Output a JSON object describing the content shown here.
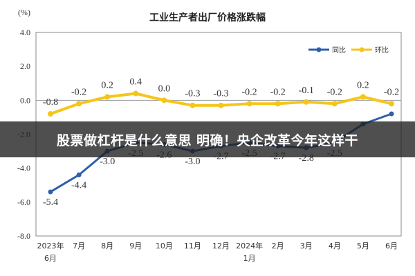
{
  "chart_data": {
    "type": "line",
    "title": "工业生产者出厂价格涨跌幅",
    "unit": "(%)",
    "categories": [
      [
        "2023年",
        "6月"
      ],
      [
        "7月"
      ],
      [
        "8月"
      ],
      [
        "9月"
      ],
      [
        "10月"
      ],
      [
        "11月"
      ],
      [
        "12月"
      ],
      [
        "2024年",
        "1月"
      ],
      [
        "2月"
      ],
      [
        "3月"
      ],
      [
        "4月"
      ],
      [
        "5月"
      ],
      [
        "6月"
      ]
    ],
    "ylim": [
      -8.0,
      4.0
    ],
    "yticks": [
      "4.0",
      "2.0",
      "0.0",
      "-2.0",
      "-4.0",
      "-6.0",
      "-8.0"
    ],
    "ytick_values": [
      4,
      2,
      0,
      -2,
      -4,
      -6,
      -8
    ],
    "grid": false,
    "legend": "top-right",
    "series": [
      {
        "name": "同比",
        "color": "#2e5fa8",
        "values": [
          -5.4,
          -4.4,
          -3.0,
          -2.5,
          -2.6,
          -3.0,
          -2.7,
          -2.5,
          -2.7,
          -2.8,
          -2.5,
          -1.4,
          -0.8
        ],
        "labels": [
          "-5.4",
          "-4.4",
          "-3.0",
          "-2.5",
          "-2.6",
          "-3.0",
          "-2.7",
          "-2.5",
          "-2.7",
          "-2.8",
          "-2.5",
          "",
          ""
        ]
      },
      {
        "name": "环比",
        "color": "#f5c518",
        "values": [
          -0.8,
          -0.2,
          0.2,
          0.4,
          0.0,
          -0.3,
          -0.3,
          -0.2,
          -0.2,
          -0.1,
          -0.2,
          0.2,
          -0.2
        ],
        "labels": [
          "-0.8",
          "-0.2",
          "0.2",
          "0.4",
          "0.0",
          "-0.3",
          "-0.3",
          "-0.2",
          "-0.2",
          "-0.1",
          "-0.2",
          "0.2",
          "-0.2"
        ]
      }
    ]
  },
  "banner": {
    "text": "股票做杠杆是什么意思 明确！央企改革今年这样干"
  }
}
